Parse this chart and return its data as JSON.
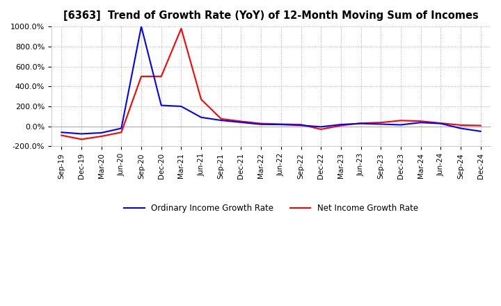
{
  "title": "[6363]  Trend of Growth Rate (YoY) of 12-Month Moving Sum of Incomes",
  "x_labels": [
    "Sep-19",
    "Dec-19",
    "Mar-20",
    "Jun-20",
    "Sep-20",
    "Dec-20",
    "Mar-21",
    "Jun-21",
    "Sep-21",
    "Dec-21",
    "Mar-22",
    "Jun-22",
    "Sep-22",
    "Dec-22",
    "Mar-23",
    "Jun-23",
    "Sep-23",
    "Dec-23",
    "Mar-24",
    "Jun-24",
    "Sep-24",
    "Dec-24"
  ],
  "ordinary_income": [
    -60,
    -75,
    -65,
    -20,
    1000,
    210,
    200,
    90,
    60,
    40,
    20,
    18,
    10,
    -5,
    18,
    28,
    22,
    15,
    38,
    28,
    -20,
    -50
  ],
  "net_income": [
    -90,
    -130,
    -100,
    -60,
    500,
    500,
    980,
    270,
    75,
    50,
    28,
    22,
    18,
    -30,
    8,
    32,
    38,
    58,
    52,
    32,
    12,
    8
  ],
  "ylim": [
    -200,
    1000
  ],
  "yticks": [
    -200,
    0,
    200,
    400,
    600,
    800,
    1000
  ],
  "ordinary_color": "#0000ff",
  "net_color": "#ff0000",
  "background_color": "#ffffff",
  "grid_color": "#aaaaaa",
  "legend_ordinary": "Ordinary Income Growth Rate",
  "legend_net": "Net Income Growth Rate",
  "line_width": 1.5
}
